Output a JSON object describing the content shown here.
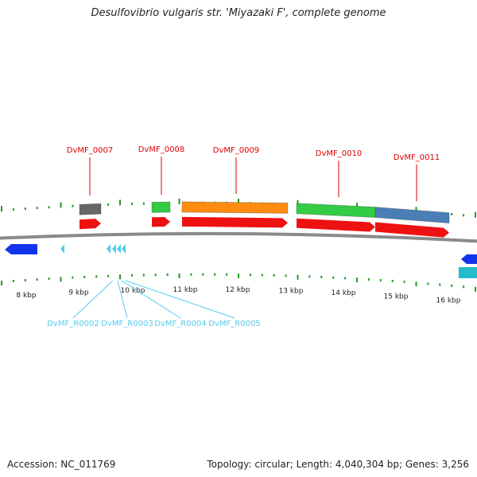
{
  "title": "Desulfovibrio vulgaris str. 'Miyazaki F', complete genome",
  "footer": {
    "accession": "Accession: NC_011769",
    "summary": "Topology: circular; Length: 4,040,304 bp; Genes: 3,256"
  },
  "colors": {
    "gene_label": "#dd0000",
    "rna_label": "#33bbdd",
    "cds": "#ee1111",
    "tick": "#229922",
    "backbone": "#8a8a8a",
    "reverse_gene": "#1133ee",
    "rna": "#55ccee"
  },
  "scale_labels": [
    "8 kbp",
    "9 kbp",
    "10 kbp",
    "11 kbp",
    "12 kbp",
    "13 kbp",
    "14 kbp",
    "15 kbp",
    "16 kbp"
  ],
  "forward_genes": [
    {
      "label": "DvMF_0007",
      "feature_color": "#666666"
    },
    {
      "label": "DvMF_0008",
      "feature_color": "#33cc44"
    },
    {
      "label": "DvMF_0009",
      "feature_color": "#ff8c10"
    },
    {
      "label": "DvMF_0010",
      "feature_color": "#33cc44"
    },
    {
      "label": "DvMF_0011",
      "feature_color": "#4a7fb5"
    }
  ],
  "rna_genes": [
    {
      "label": "DvMF_R0002"
    },
    {
      "label": "DvMF_R0003"
    },
    {
      "label": "DvMF_R0004"
    },
    {
      "label": "DvMF_R0005"
    }
  ]
}
